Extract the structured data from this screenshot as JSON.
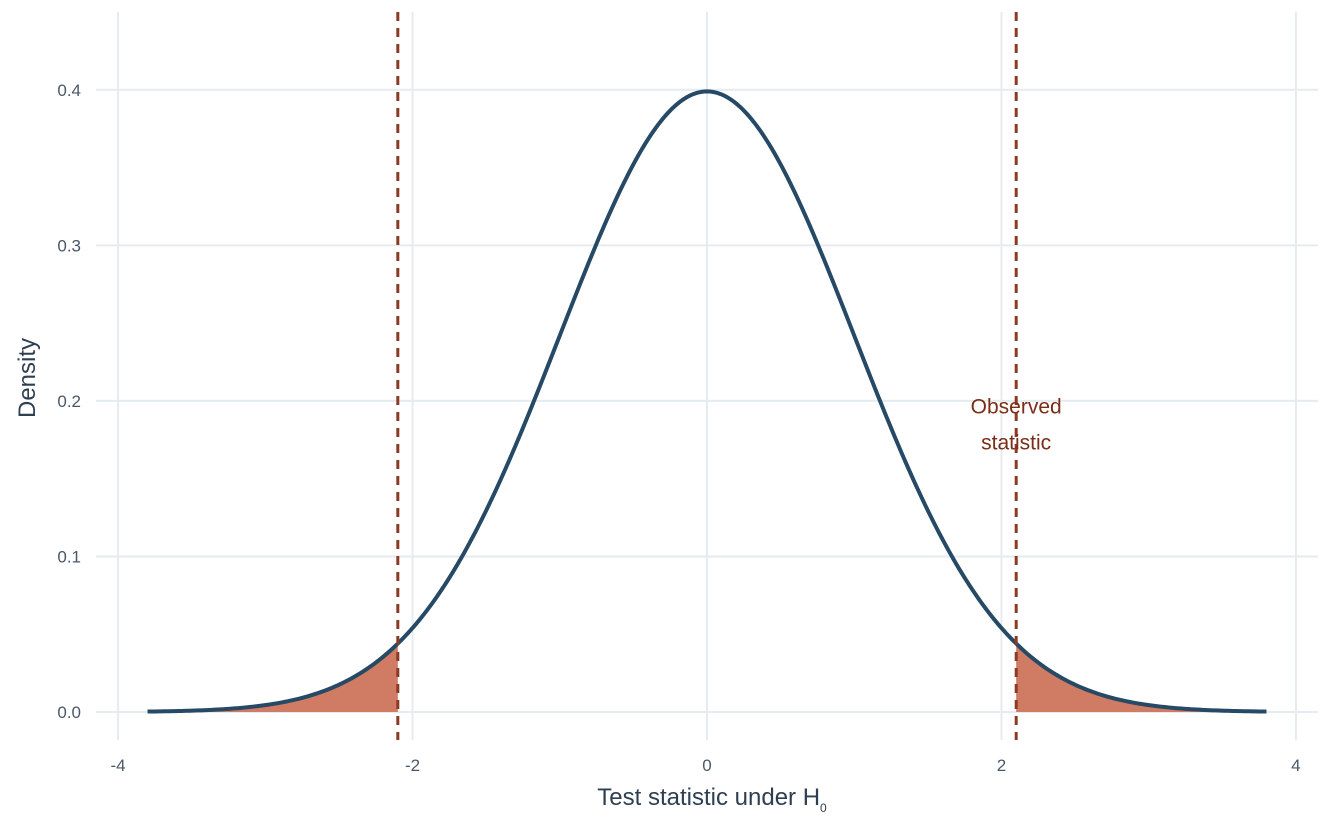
{
  "chart_data": {
    "type": "area",
    "xlabel_main": "Test statistic under H",
    "xlabel_sub": "0",
    "ylabel": "Density",
    "xlim": [
      -4.15,
      4.15
    ],
    "ylim": [
      -0.018,
      0.45
    ],
    "x_ticks": [
      -4,
      -2,
      0,
      2,
      4
    ],
    "x_tick_labels": [
      "-4",
      "-2",
      "0",
      "2",
      "4"
    ],
    "y_ticks": [
      0.0,
      0.1,
      0.2,
      0.3,
      0.4
    ],
    "y_tick_labels": [
      "0.0",
      "0.1",
      "0.2",
      "0.3",
      "0.4"
    ],
    "grid": true,
    "curve": {
      "distribution": "standard normal density",
      "x_range": [
        -3.8,
        3.8
      ],
      "peak": {
        "x": 0,
        "y": 0.399
      },
      "color": "#264a66"
    },
    "observed_statistic": 2.1,
    "reference_lines": [
      {
        "x": -2.1,
        "style": "dashed",
        "color": "#8b3a26"
      },
      {
        "x": 2.1,
        "style": "dashed",
        "color": "#8b3a26"
      }
    ],
    "shaded_tails": [
      {
        "from": -3.8,
        "to": -2.1
      },
      {
        "from": 2.1,
        "to": 3.8
      }
    ],
    "shade_color": "#d07b63",
    "annotation": {
      "lines": [
        "Observed",
        "statistic"
      ],
      "x": 2.1,
      "y": 0.19,
      "color": "#7b2d17"
    }
  }
}
